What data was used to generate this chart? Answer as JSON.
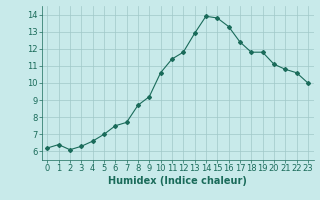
{
  "x": [
    0,
    1,
    2,
    3,
    4,
    5,
    6,
    7,
    8,
    9,
    10,
    11,
    12,
    13,
    14,
    15,
    16,
    17,
    18,
    19,
    20,
    21,
    22,
    23
  ],
  "y": [
    6.2,
    6.4,
    6.1,
    6.3,
    6.6,
    7.0,
    7.5,
    7.7,
    8.7,
    9.2,
    10.6,
    11.4,
    11.8,
    12.9,
    13.9,
    13.8,
    13.3,
    12.4,
    11.8,
    11.8,
    11.1,
    10.8,
    10.6,
    10.0
  ],
  "line_color": "#1a6b5a",
  "marker": "D",
  "marker_size": 2.0,
  "bg_color": "#c8eaea",
  "grid_color": "#a0c8c8",
  "xlabel": "Humidex (Indice chaleur)",
  "ylim": [
    5.5,
    14.5
  ],
  "xlim": [
    -0.5,
    23.5
  ],
  "yticks": [
    6,
    7,
    8,
    9,
    10,
    11,
    12,
    13,
    14
  ],
  "xticks": [
    0,
    1,
    2,
    3,
    4,
    5,
    6,
    7,
    8,
    9,
    10,
    11,
    12,
    13,
    14,
    15,
    16,
    17,
    18,
    19,
    20,
    21,
    22,
    23
  ],
  "label_fontsize": 7,
  "tick_fontsize": 6
}
